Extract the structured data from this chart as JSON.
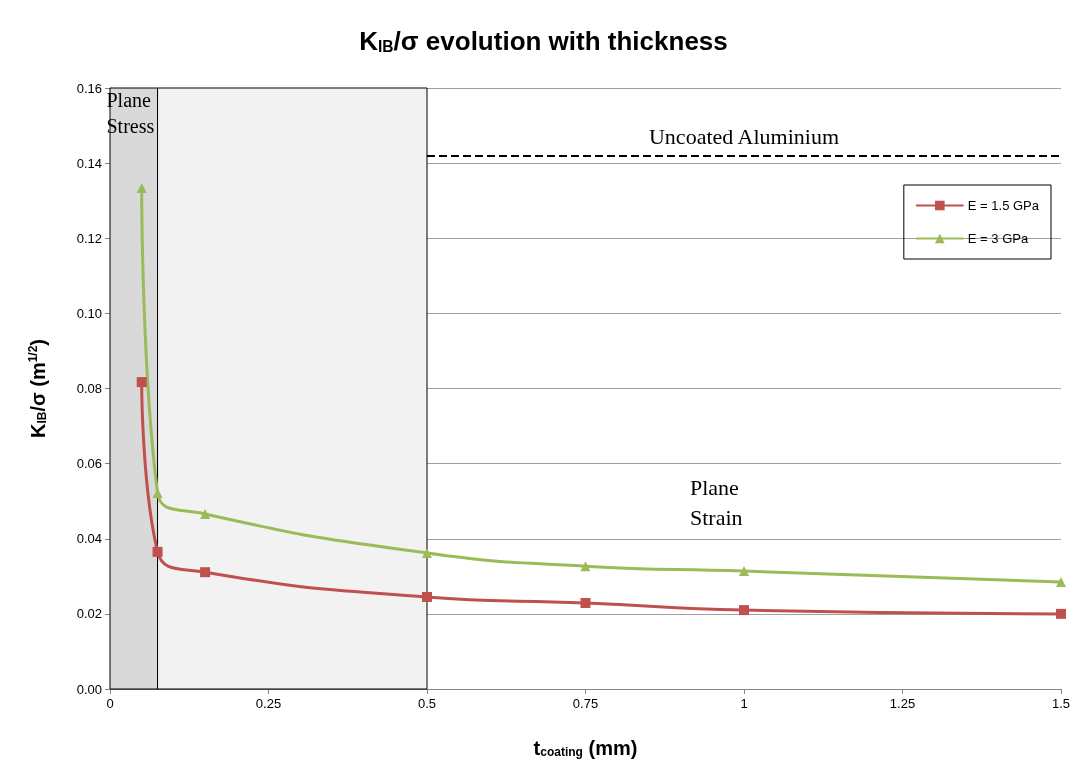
{
  "chart_data": {
    "type": "line",
    "title": "K$_{IB}$/σ evolution with thickness",
    "xlabel": "t$_{coating}$ (mm)",
    "ylabel": "K$_{IB}$/σ (m$^{1/2}$)",
    "series": [
      {
        "name": "E = 1.5 GPa",
        "color": "#c0504d",
        "marker": "square",
        "x": [
          0.05,
          0.075,
          0.15,
          0.5,
          0.75,
          1.0,
          1.5
        ],
        "values": [
          0.0817,
          0.0365,
          0.0311,
          0.0245,
          0.0229,
          0.021,
          0.02
        ]
      },
      {
        "name": "E = 3 GPa",
        "color": "#9bbb59",
        "marker": "triangle",
        "x": [
          0.05,
          0.075,
          0.15,
          0.5,
          0.75,
          1.0,
          1.5
        ],
        "values": [
          0.1334,
          0.0522,
          0.0466,
          0.0362,
          0.0327,
          0.0314,
          0.0285
        ]
      }
    ],
    "xlim": [
      0,
      1.5
    ],
    "xticks": [
      0,
      0.25,
      0.5,
      0.75,
      1,
      1.25,
      1.5
    ],
    "ylim": [
      0,
      0.16
    ],
    "yticks": [
      {
        "value": 0,
        "label": "0.00"
      },
      {
        "value": 0.02,
        "label": "0.02"
      },
      {
        "value": 0.04,
        "label": "0.04"
      },
      {
        "value": 0.06,
        "label": "0.06"
      },
      {
        "value": 0.08,
        "label": "0.08"
      },
      {
        "value": 0.1,
        "label": "0.10"
      },
      {
        "value": 0.12,
        "label": "0.12"
      },
      {
        "value": 0.14,
        "label": "0.14"
      },
      {
        "value": 0.16,
        "label": "0.16"
      }
    ],
    "bands": [
      {
        "axis": "x",
        "from": 0,
        "to": 0.075,
        "label": "Plane Stress",
        "color": "#d9d9d9"
      },
      {
        "axis": "x",
        "from": 0.075,
        "to": 0.5,
        "label": null,
        "color": "#f2f2f2"
      }
    ],
    "ref_lines": [
      {
        "axis": "y",
        "value": 0.142,
        "label": "Uncoated Aluminium",
        "line_style": "dashed",
        "color": "#000000"
      }
    ],
    "annotations": [
      "Plane Strain"
    ],
    "grid": "y",
    "legend": "top right",
    "line_style": "solid"
  }
}
